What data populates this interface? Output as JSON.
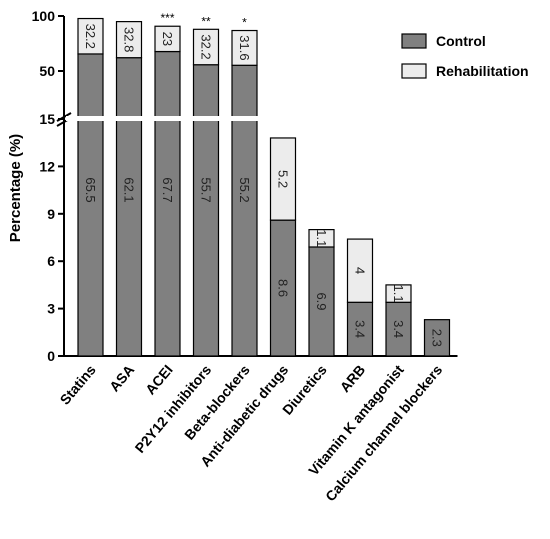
{
  "chart_data": {
    "type": "bar",
    "stacked": true,
    "title": "",
    "xlabel": "",
    "ylabel": "Percentage (%)",
    "y_axis_break": {
      "lower_range": [
        0,
        15
      ],
      "upper_range": [
        15,
        100
      ]
    },
    "y_ticks_lower": [
      "0",
      "3",
      "6",
      "9",
      "12",
      "15"
    ],
    "y_ticks_upper": [
      "50",
      "100"
    ],
    "legend_position": "top-right",
    "categories": [
      "Statins",
      "ASA",
      "ACEI",
      "P2Y12 inhibitors",
      "Beta-blockers",
      "Anti-diabetic drugs",
      "Diuretics",
      "ARB",
      "Vitamin K antagonist",
      "Calcium channel blockers"
    ],
    "significance": [
      "",
      "",
      "***",
      "**",
      "*",
      "",
      "",
      "",
      "",
      ""
    ],
    "series": [
      {
        "name": "Control",
        "color": "#808080",
        "values": [
          65.5,
          62.1,
          67.7,
          55.7,
          55.2,
          8.6,
          6.9,
          3.4,
          3.4,
          2.3
        ],
        "labels": [
          "65.5",
          "62.1",
          "67.7",
          "55.7",
          "55.2",
          "8.6",
          "6.9",
          "3.4",
          "3.4",
          "2.3"
        ]
      },
      {
        "name": "Rehabilitation",
        "color": "#ececec",
        "values": [
          32.2,
          32.8,
          23,
          32.2,
          31.6,
          5.2,
          1.1,
          4,
          1.1,
          0
        ],
        "labels": [
          "32.2",
          "32.8",
          "23",
          "32.2",
          "31.6",
          "5.2",
          "1.1",
          "4",
          "1.1",
          ""
        ]
      }
    ]
  }
}
